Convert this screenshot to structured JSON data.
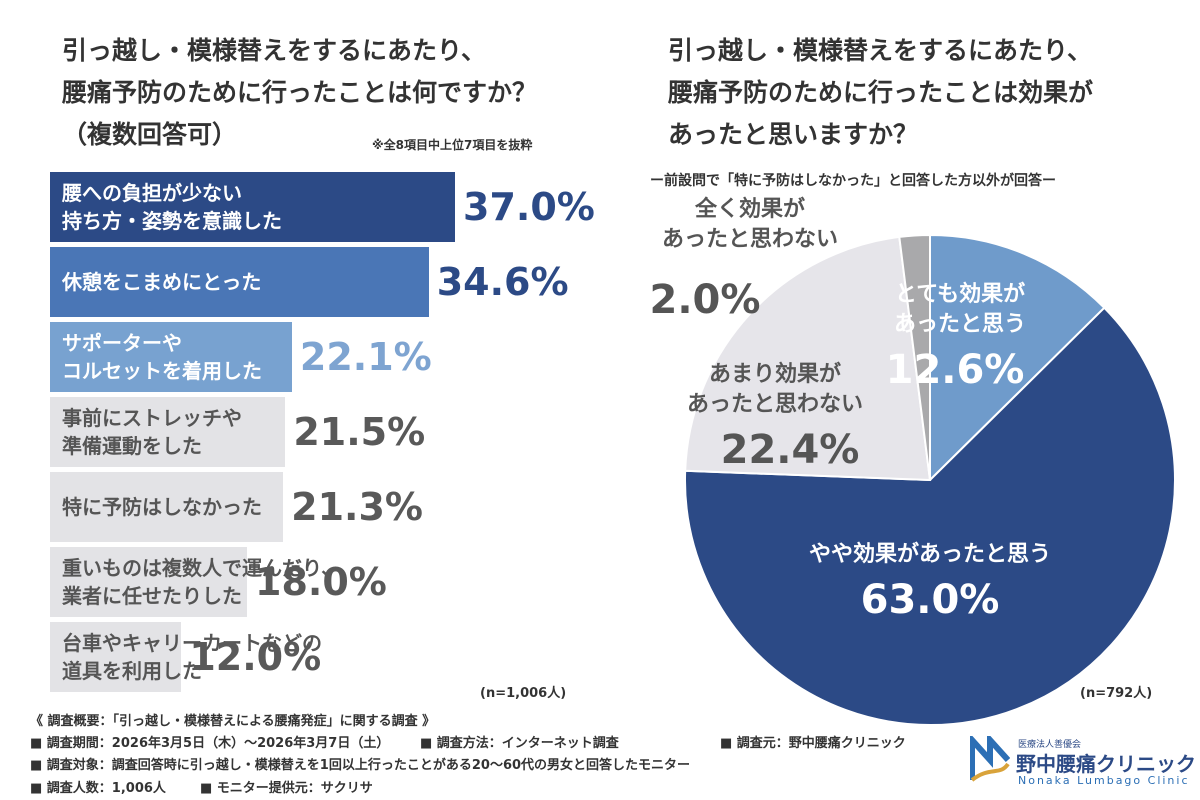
{
  "chart_data": [
    {
      "type": "hbar",
      "title": "引っ越し・模様替えをするにあたり、\n腰痛予防のために行ったことは何ですか？\n（複数回答可）",
      "note": "※全8項目中上位7項目を抜粋",
      "categories": [
        "腰への負担が少ない\n持ち方・姿勢を意識した",
        "休憩をこまめにとった",
        "サポーターや\nコルセットを着用した",
        "事前にストレッチや\n準備運動をした",
        "特に予防はしなかった",
        "重いものは複数人で運んだり、\n業者に任せたりした",
        "台車やキャリーカートなどの\n道具を利用した"
      ],
      "values": [
        37.0,
        34.6,
        22.1,
        21.5,
        21.3,
        18.0,
        12.0
      ],
      "value_labels": [
        "37.0%",
        "34.6%",
        "22.1%",
        "21.5%",
        "21.3%",
        "18.0%",
        "12.0%"
      ],
      "colors": [
        "#2c4a86",
        "#4a76b6",
        "#78a2d0",
        "#e3e3e6",
        "#e3e3e6",
        "#e3e3e6",
        "#e3e3e6"
      ],
      "value_label_colors": [
        "#2c4a86",
        "#2c4a86",
        "#7ea4d1",
        "#595959",
        "#595959",
        "#595959",
        "#595959"
      ],
      "sample": "(n=1,006人)"
    },
    {
      "type": "pie",
      "title": "引っ越し・模様替えをするにあたり、\n腰痛予防のために行ったことは効果が\nあったと思いますか？",
      "subtitle": "ー前設問で「特に予防はしなかった」と回答した方以外が回答ー",
      "categories": [
        "とても効果が\nあったと思う",
        "やや効果があったと思う",
        "あまり効果が\nあったと思わない",
        "全く効果が\nあったと思わない"
      ],
      "values": [
        12.6,
        63.0,
        22.4,
        2.0
      ],
      "value_labels": [
        "12.6%",
        "63.0%",
        "22.4%",
        "2.0%"
      ],
      "colors": [
        "#6f9bcb",
        "#2c4a86",
        "#e6e5ea",
        "#a9a9ab"
      ],
      "sample": "(n=792人)"
    }
  ],
  "footer": {
    "heading": "《 調査概要：「引っ越し・模様替えによる腰痛発症」に関する調査 》",
    "period": "■ 調査期間：2026年3月5日（木）～2026年3月7日（土）",
    "method": "■ 調査方法：インターネット調査",
    "source": "■ 調査元：野中腰痛クリニック",
    "target": "■ 調査対象：調査回答時に引っ越し・模様替えを1回以上行ったことがある20～60代の男女と回答したモニター",
    "count": "■ 調査人数：1,006人",
    "provider": "■ モニター提供元：サクリサ"
  },
  "logo": {
    "corp": "医療法人善優会",
    "name": "野中腰痛クリニック",
    "en": "Nonaka Lumbago Clinic"
  }
}
